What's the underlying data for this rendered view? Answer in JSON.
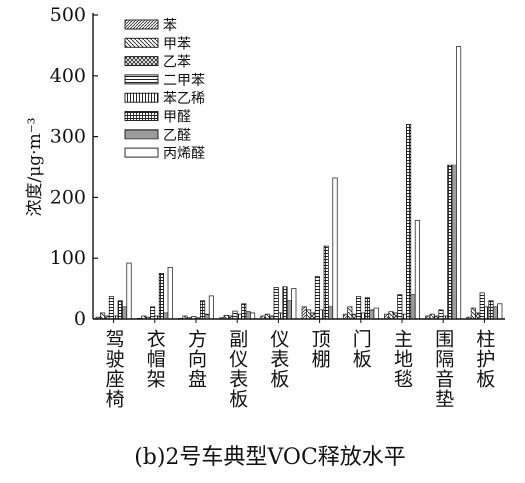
{
  "chart_data": {
    "type": "bar",
    "caption": "(b)2号车典型VOC释放水平",
    "ylabel": "浓度/μg·m⁻³",
    "xlabel": "",
    "ylim": [
      0,
      500
    ],
    "yticks": [
      0,
      100,
      200,
      300,
      400,
      500
    ],
    "grid": false,
    "legend_position": "top-left",
    "categories": [
      "驾驶座椅",
      "衣帽架",
      "方向盘",
      "副仪表板",
      "仪表板",
      "顶棚",
      "门板",
      "主地毯",
      "围隔音垫",
      "柱护板"
    ],
    "series": [
      {
        "name": "苯",
        "pattern": "diag-fine",
        "values": [
          3,
          1,
          1,
          2,
          5,
          20,
          8,
          8,
          5,
          3
        ]
      },
      {
        "name": "甲苯",
        "pattern": "diag-back",
        "values": [
          10,
          5,
          5,
          6,
          8,
          15,
          20,
          12,
          8,
          18
        ]
      },
      {
        "name": "乙苯",
        "pattern": "crosshatch",
        "values": [
          5,
          3,
          2,
          5,
          5,
          10,
          8,
          10,
          5,
          10
        ]
      },
      {
        "name": "二甲苯",
        "pattern": "hlines",
        "values": [
          37,
          20,
          4,
          13,
          52,
          70,
          37,
          40,
          15,
          43
        ]
      },
      {
        "name": "苯乙稀",
        "pattern": "vlines",
        "values": [
          5,
          5,
          2,
          8,
          10,
          15,
          10,
          8,
          5,
          20
        ]
      },
      {
        "name": "甲醛",
        "pattern": "grid",
        "values": [
          30,
          75,
          30,
          25,
          53,
          120,
          35,
          320,
          253,
          30
        ]
      },
      {
        "name": "乙醛",
        "pattern": "hlines-dense",
        "values": [
          20,
          10,
          8,
          12,
          30,
          20,
          15,
          40,
          253,
          20
        ]
      },
      {
        "name": "丙烯醛",
        "pattern": "hollow",
        "values": [
          92,
          85,
          38,
          10,
          50,
          232,
          18,
          162,
          448,
          25
        ]
      }
    ]
  }
}
